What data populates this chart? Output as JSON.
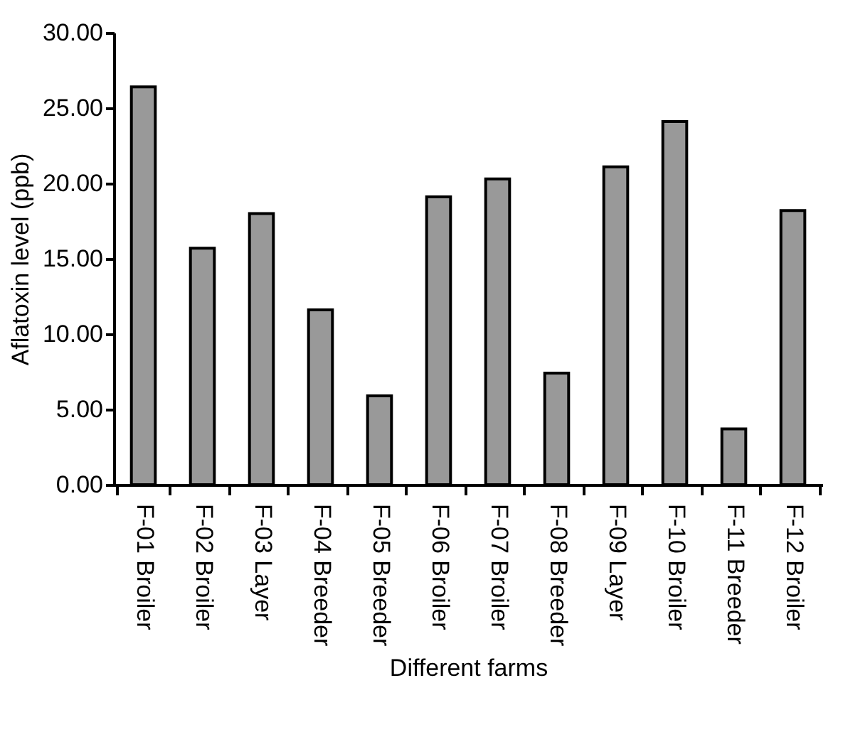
{
  "chart_data": {
    "type": "bar",
    "xlabel": "Different farms",
    "ylabel": "Aflatoxin level (ppb)",
    "categories": [
      "F-01 Broiler",
      "F-02 Broiler",
      "F-03 Layer",
      "F-04 Breeder",
      "F-05 Breeder",
      "F-06 Broiler",
      "F-07 Broiler",
      "F-08 Breeder",
      "F-09 Layer",
      "F-10 Broiler",
      "F-11 Breeder",
      "F-12 Broiler"
    ],
    "values": [
      26.4,
      15.7,
      18.0,
      11.6,
      5.9,
      19.1,
      20.3,
      7.4,
      21.1,
      24.1,
      3.7,
      18.2
    ],
    "color": "#999999",
    "ylim": [
      0,
      30
    ],
    "yticks": [
      {
        "value": 0,
        "label": "0.00"
      },
      {
        "value": 5,
        "label": "5.00"
      },
      {
        "value": 10,
        "label": "10.00"
      },
      {
        "value": 15,
        "label": "15.00"
      },
      {
        "value": 20,
        "label": "20.00"
      },
      {
        "value": 25,
        "label": "25.00"
      },
      {
        "value": 30,
        "label": "30.00"
      }
    ],
    "grid": false
  }
}
